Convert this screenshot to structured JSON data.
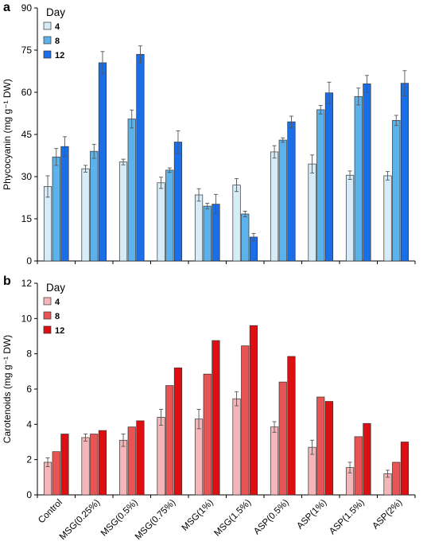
{
  "chart_data": [
    {
      "type": "bar",
      "panel_label": "a",
      "ylabel": "Phycocyanin (mg g⁻¹ DW)",
      "ylim": [
        0,
        90
      ],
      "yticks": [
        0,
        15,
        30,
        45,
        60,
        75,
        90
      ],
      "legend_title": "Day",
      "legend_position": "top-left",
      "categories": [
        "Control",
        "MSG(0.25%)",
        "MSG(0.5%)",
        "MSG(0.75%)",
        "MSG(1%)",
        "MSG(1.5%)",
        "ASP(0.5%)",
        "ASP(1%)",
        "ASP(1.5%)",
        "ASP(2%)"
      ],
      "series": [
        {
          "name": "4",
          "color": "#d6ecf8",
          "values": [
            26.5,
            32.8,
            35.2,
            27.8,
            23.5,
            27.0,
            38.8,
            34.5,
            30.5,
            30.3
          ],
          "errors": [
            3.8,
            1.2,
            1.0,
            2.0,
            2.2,
            2.3,
            2.2,
            3.2,
            1.5,
            1.5
          ]
        },
        {
          "name": "8",
          "color": "#5cb3ec",
          "values": [
            37.0,
            39.0,
            50.5,
            32.3,
            19.5,
            16.7,
            43.0,
            53.8,
            58.5,
            50.0
          ],
          "errors": [
            3.0,
            2.5,
            3.2,
            0.8,
            1.0,
            1.0,
            0.8,
            1.5,
            3.0,
            1.8
          ]
        },
        {
          "name": "12",
          "color": "#1a6ee8",
          "values": [
            40.7,
            70.5,
            73.5,
            42.3,
            20.2,
            8.5,
            49.5,
            59.8,
            63.0,
            63.2
          ],
          "errors": [
            3.5,
            4.0,
            3.0,
            4.0,
            3.5,
            1.3,
            2.0,
            3.8,
            3.0,
            4.5
          ]
        }
      ]
    },
    {
      "type": "bar",
      "panel_label": "b",
      "ylabel": "Carotenoids (mg g⁻¹ DW)",
      "ylim": [
        0,
        12
      ],
      "yticks": [
        0,
        2,
        4,
        6,
        8,
        10,
        12
      ],
      "legend_title": "Day",
      "legend_position": "top-left",
      "categories": [
        "Control",
        "MSG(0.25%)",
        "MSG(0.5%)",
        "MSG(0.75%)",
        "MSG(1%)",
        "MSG(1.5%)",
        "ASP(0.5%)",
        "ASP(1%)",
        "ASP(1.5%)",
        "ASP(2%)"
      ],
      "series": [
        {
          "name": "4",
          "color": "#f4b6b8",
          "values": [
            1.85,
            3.25,
            3.1,
            4.4,
            4.3,
            5.45,
            3.85,
            2.7,
            1.55,
            1.2
          ],
          "errors": [
            0.25,
            0.2,
            0.35,
            0.45,
            0.55,
            0.4,
            0.3,
            0.4,
            0.3,
            0.2
          ]
        },
        {
          "name": "8",
          "color": "#e85454",
          "values": [
            2.45,
            3.45,
            3.85,
            6.2,
            6.85,
            8.45,
            6.4,
            5.55,
            3.3,
            1.85
          ]
        },
        {
          "name": "12",
          "color": "#dd0f10",
          "values": [
            3.45,
            3.65,
            4.2,
            7.2,
            8.75,
            9.6,
            7.85,
            5.3,
            4.05,
            3.0
          ]
        }
      ]
    }
  ]
}
